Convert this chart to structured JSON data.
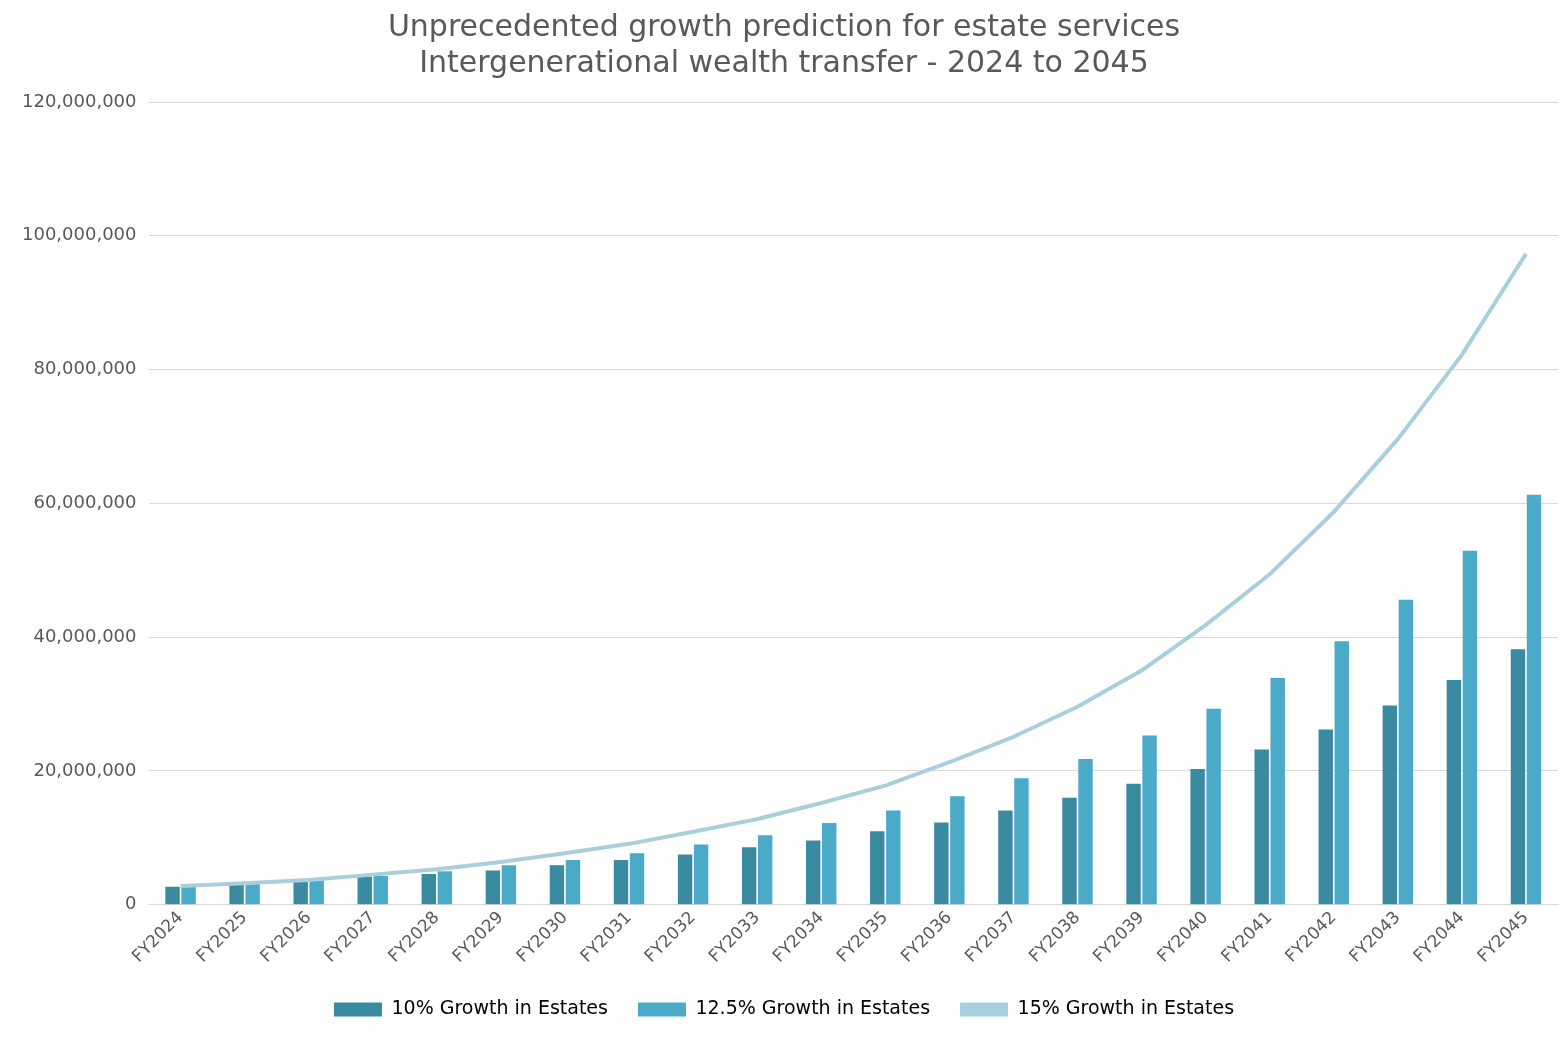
{
  "chart_data": {
    "type": "bar",
    "title": [
      "Unprecedented growth prediction for estate services",
      "Intergenerational wealth transfer - 2024 to 2045"
    ],
    "categories": [
      "FY2024",
      "FY2025",
      "FY2026",
      "FY2027",
      "FY2028",
      "FY2029",
      "FY2030",
      "FY2031",
      "FY2032",
      "FY2033",
      "FY2034",
      "FY2035",
      "FY2036",
      "FY2037",
      "FY2038",
      "FY2039",
      "FY2040",
      "FY2041",
      "FY2042",
      "FY2043",
      "FY2044",
      "FY2045"
    ],
    "series": [
      {
        "name": "10% Growth in Estates",
        "color": "#3a8aa0",
        "values": [
          2700000,
          3000000,
          3500000,
          4200000,
          4600000,
          5100000,
          5900000,
          6700000,
          7500000,
          8600000,
          9600000,
          11000000,
          12300000,
          14100000,
          16000000,
          18100000,
          20300000,
          23200000,
          26200000,
          29800000,
          33600000,
          38200000
        ]
      },
      {
        "name": "12.5% Growth in Estates",
        "color": "#4aaac8",
        "values": [
          2700000,
          3200000,
          3700000,
          4300000,
          5000000,
          5900000,
          6700000,
          7700000,
          9000000,
          10400000,
          12200000,
          14100000,
          16200000,
          18900000,
          21800000,
          25300000,
          29300000,
          33900000,
          39400000,
          45600000,
          52900000,
          61300000
        ]
      },
      {
        "name": "15% Growth in Estates",
        "type": "line",
        "color": "#a8d0dc",
        "values": [
          2800000,
          3200000,
          3700000,
          4500000,
          5300000,
          6400000,
          7700000,
          9100000,
          10900000,
          12800000,
          15200000,
          17800000,
          21300000,
          25100000,
          29600000,
          35000000,
          41800000,
          49400000,
          58700000,
          69600000,
          82200000,
          97300000
        ]
      }
    ],
    "ylim": [
      0,
      120000000
    ],
    "yticks": [
      0,
      {
        "value": 20000000,
        "label": "20,000,000"
      },
      {
        "value": 40000000,
        "label": "40,000,000"
      },
      {
        "value": 60000000,
        "label": "60,000,000"
      },
      {
        "value": 80000000,
        "label": "80,000,000"
      },
      {
        "value": 100000000,
        "label": "100,000,000"
      },
      {
        "value": 120000000,
        "label": "120,000,000"
      }
    ],
    "grid": "y",
    "legend": "bottom",
    "marker": "none"
  }
}
